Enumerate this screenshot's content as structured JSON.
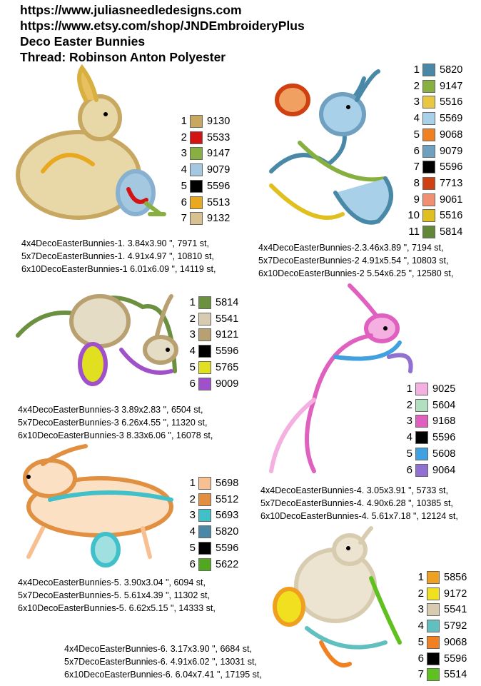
{
  "header": {
    "lines": [
      "https://www.juliasneedledesigns.com",
      "https://www.etsy.com/shop/JNDEmbroideryPlus",
      "Deco Easter Bunnies",
      "Thread: Robinson Anton Polyester"
    ]
  },
  "designs": [
    {
      "threads": [
        {
          "number": 1,
          "code": "9130",
          "color": "#c8a860"
        },
        {
          "number": 2,
          "code": "5533",
          "color": "#d41414"
        },
        {
          "number": 3,
          "code": "9147",
          "color": "#88b040"
        },
        {
          "number": 4,
          "code": "9079",
          "color": "#a4c8e0"
        },
        {
          "number": 5,
          "code": "5596",
          "color": "#000000"
        },
        {
          "number": 6,
          "code": "5513",
          "color": "#e8a820"
        },
        {
          "number": 7,
          "code": "9132",
          "color": "#d8c090"
        }
      ],
      "sizes": [
        "4x4DecoEasterBunnies-1. 3.84x3.90 \", 7971 st,",
        "5x7DecoEasterBunnies-1. 4.91x4.97 \", 10810 st,",
        "6x10DecoEasterBunnies-1 6.01x6.09 \", 14119 st,"
      ]
    },
    {
      "threads": [
        {
          "number": 1,
          "code": "5820",
          "color": "#4a88a8"
        },
        {
          "number": 2,
          "code": "9147",
          "color": "#88b040"
        },
        {
          "number": 3,
          "code": "5516",
          "color": "#e8c840"
        },
        {
          "number": 4,
          "code": "5569",
          "color": "#a8d0e8"
        },
        {
          "number": 5,
          "code": "9068",
          "color": "#f08020"
        },
        {
          "number": 6,
          "code": "9079",
          "color": "#70a0c0"
        },
        {
          "number": 7,
          "code": "5596",
          "color": "#000000"
        },
        {
          "number": 8,
          "code": "7713",
          "color": "#d04010"
        },
        {
          "number": 9,
          "code": "9061",
          "color": "#f09070"
        },
        {
          "number": 10,
          "code": "5516",
          "color": "#e0c020"
        },
        {
          "number": 11,
          "code": "5814",
          "color": "#608838"
        }
      ],
      "sizes": [
        "4x4DecoEasterBunnies-2.3.46x3.89 \", 7194 st,",
        "5x7DecoEasterBunnies-2 4.91x5.54 \", 10803 st,",
        "6x10DecoEasterBunnies-2 5.54x6.25 \", 12580 st,"
      ]
    },
    {
      "threads": [
        {
          "number": 1,
          "code": "5814",
          "color": "#6a9040"
        },
        {
          "number": 2,
          "code": "5541",
          "color": "#d8ccb0"
        },
        {
          "number": 3,
          "code": "9121",
          "color": "#b8a070"
        },
        {
          "number": 4,
          "code": "5596",
          "color": "#000000"
        },
        {
          "number": 5,
          "code": "5765",
          "color": "#e0e020"
        },
        {
          "number": 6,
          "code": "9009",
          "color": "#a050c8"
        }
      ],
      "sizes": [
        "4x4DecoEasterBunnies-3 3.89x2.83 \", 6504 st,",
        "5x7DecoEasterBunnies-3 6.26x4.55 \", 11320 st,",
        "6x10DecoEasterBunnies-3 8.33x6.06 \", 16078 st,"
      ]
    },
    {
      "threads": [
        {
          "number": 1,
          "code": "9025",
          "color": "#f4b0e0"
        },
        {
          "number": 2,
          "code": "5604",
          "color": "#b0e0c0"
        },
        {
          "number": 3,
          "code": "9168",
          "color": "#e060c0"
        },
        {
          "number": 4,
          "code": "5596",
          "color": "#000000"
        },
        {
          "number": 5,
          "code": "5608",
          "color": "#40a0e0"
        },
        {
          "number": 6,
          "code": "9064",
          "color": "#9070d0"
        }
      ],
      "sizes": [
        "4x4DecoEasterBunnies-4. 3.05x3.91 \", 5733 st,",
        "5x7DecoEasterBunnies-4. 4.90x6.28 \", 10385 st,",
        "6x10DecoEasterBunnies-4. 5.61x7.18 \", 12124 st,"
      ]
    },
    {
      "threads": [
        {
          "number": 1,
          "code": "5698",
          "color": "#f8c090"
        },
        {
          "number": 2,
          "code": "5512",
          "color": "#e09040"
        },
        {
          "number": 3,
          "code": "5693",
          "color": "#40c0c8"
        },
        {
          "number": 4,
          "code": "5820",
          "color": "#4a88a8"
        },
        {
          "number": 5,
          "code": "5596",
          "color": "#000000"
        },
        {
          "number": 6,
          "code": "5622",
          "color": "#50a820"
        }
      ],
      "sizes": [
        "4x4DecoEasterBunnies-5. 3.90x3.04 \", 6094 st,",
        "5x7DecoEasterBunnies-5. 5.61x4.39 \", 11302 st,",
        "6x10DecoEasterBunnies-5. 6.62x5.15 \", 14333 st,"
      ]
    },
    {
      "threads": [
        {
          "number": 1,
          "code": "5856",
          "color": "#f0a020"
        },
        {
          "number": 2,
          "code": "9172",
          "color": "#f0e020"
        },
        {
          "number": 3,
          "code": "5541",
          "color": "#d8ccb0"
        },
        {
          "number": 4,
          "code": "5792",
          "color": "#60c0c0"
        },
        {
          "number": 5,
          "code": "9068",
          "color": "#f08020"
        },
        {
          "number": 6,
          "code": "5596",
          "color": "#000000"
        },
        {
          "number": 7,
          "code": "5514",
          "color": "#60c020"
        }
      ],
      "sizes": [
        "4x4DecoEasterBunnies-6. 3.17x3.90 \", 6684 st,",
        "5x7DecoEasterBunnies-6. 4.91x6.02 \", 13031 st,",
        "6x10DecoEasterBunnies-6. 6.04x7.41 \", 17195 st,"
      ]
    }
  ]
}
